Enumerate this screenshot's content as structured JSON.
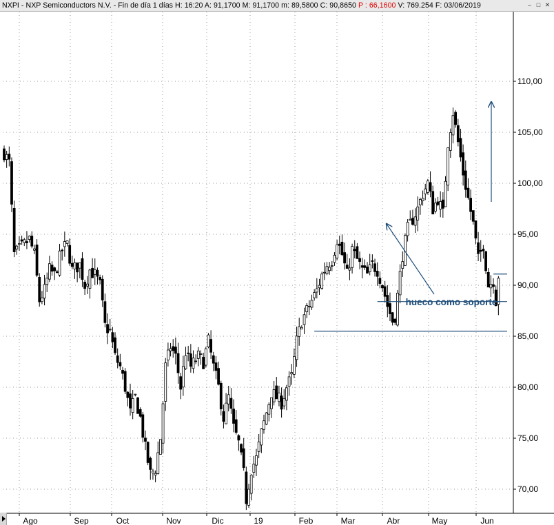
{
  "header": {
    "text_main": "NXPI - NXP Semiconductors N.V. - Fin de día 1 días  H: 16:20  A: 91,1700  M: 91,1700  m: 89,5800  C: 90,8650",
    "text_red": "P : 66,1600",
    "text_tail": "V: 769.254  F: 03/06/2019",
    "btn_min": "–",
    "btn_max": "□",
    "btn_close": "✕"
  },
  "chart_data": {
    "type": "candlestick",
    "title": "NXPI - NXP Semiconductors N.V.",
    "ylim": [
      67.0,
      111.5
    ],
    "y_ticks": [
      70,
      75,
      80,
      85,
      90,
      95,
      100,
      105,
      110
    ],
    "y_tick_labels": [
      "70,00",
      "75,00",
      "80,00",
      "85,00",
      "90,00",
      "95,00",
      "100,00",
      "105,00",
      "110,00"
    ],
    "x_month_labels": [
      "Ago",
      "Sep",
      "Oct",
      "Nov",
      "Dic",
      "19",
      "Feb",
      "Mar",
      "Abr",
      "May",
      "Jun"
    ],
    "grid": "dotted",
    "anchors": [
      [
        0,
        103
      ],
      [
        2,
        102
      ],
      [
        4,
        93
      ],
      [
        6,
        93.5
      ],
      [
        10,
        94.5
      ],
      [
        12,
        93
      ],
      [
        14,
        88.5
      ],
      [
        16,
        89.5
      ],
      [
        18,
        91.5
      ],
      [
        20,
        91
      ],
      [
        23,
        93.5
      ],
      [
        25,
        94
      ],
      [
        27,
        91.5
      ],
      [
        30,
        92
      ],
      [
        32,
        90
      ],
      [
        34,
        91.5
      ],
      [
        36,
        91
      ],
      [
        38,
        90
      ],
      [
        40,
        86
      ],
      [
        42,
        85.5
      ],
      [
        44,
        83
      ],
      [
        46,
        82
      ],
      [
        48,
        80
      ],
      [
        50,
        77.5
      ],
      [
        52,
        79
      ],
      [
        54,
        77
      ],
      [
        56,
        74
      ],
      [
        58,
        71.5
      ],
      [
        60,
        72
      ],
      [
        62,
        75
      ],
      [
        64,
        82
      ],
      [
        66,
        84
      ],
      [
        68,
        83
      ],
      [
        70,
        80
      ],
      [
        72,
        83.5
      ],
      [
        74,
        82
      ],
      [
        77,
        83
      ],
      [
        79,
        82.5
      ],
      [
        81,
        84.5
      ],
      [
        83,
        82
      ],
      [
        85,
        80
      ],
      [
        87,
        77
      ],
      [
        89,
        79
      ],
      [
        91,
        76
      ],
      [
        93,
        74.5
      ],
      [
        95,
        71.5
      ],
      [
        96,
        69
      ],
      [
        98,
        72
      ],
      [
        100,
        73
      ],
      [
        102,
        75.5
      ],
      [
        104,
        77.5
      ],
      [
        106,
        79.5
      ],
      [
        108,
        79
      ],
      [
        110,
        78.5
      ],
      [
        112,
        80
      ],
      [
        114,
        81
      ],
      [
        116,
        84.5
      ],
      [
        118,
        86.5
      ],
      [
        120,
        87.5
      ],
      [
        122,
        88.5
      ],
      [
        124,
        89.5
      ],
      [
        126,
        91
      ],
      [
        128,
        92
      ],
      [
        130,
        92.5
      ],
      [
        132,
        94.5
      ],
      [
        134,
        93
      ],
      [
        136,
        91
      ],
      [
        138,
        93.5
      ],
      [
        140,
        92.5
      ],
      [
        142,
        91.5
      ],
      [
        144,
        91
      ],
      [
        146,
        92
      ],
      [
        148,
        91.5
      ],
      [
        150,
        90
      ],
      [
        152,
        88
      ],
      [
        154,
        86.5
      ],
      [
        155,
        87
      ],
      [
        156,
        89
      ],
      [
        158,
        93
      ],
      [
        160,
        95.5
      ],
      [
        162,
        96.5
      ],
      [
        164,
        97.5
      ],
      [
        166,
        99
      ],
      [
        168,
        100
      ],
      [
        170,
        97.5
      ],
      [
        172,
        98.5
      ],
      [
        174,
        97
      ],
      [
        176,
        104
      ],
      [
        178,
        107
      ],
      [
        180,
        104
      ],
      [
        182,
        101
      ],
      [
        184,
        98.5
      ],
      [
        186,
        96
      ],
      [
        188,
        92.5
      ],
      [
        190,
        94
      ],
      [
        192,
        90
      ],
      [
        194,
        90.5
      ],
      [
        195,
        88.5
      ],
      [
        196,
        91
      ]
    ],
    "annotations": {
      "support_lines": [
        {
          "from": 148,
          "to": 200,
          "y": 88.4
        },
        {
          "from": 123,
          "to": 200,
          "y": 85.5
        },
        {
          "from": 194,
          "to": 200,
          "y": 91.1
        }
      ],
      "label": "hueco como soporte",
      "color": "#1f4e7a"
    }
  }
}
